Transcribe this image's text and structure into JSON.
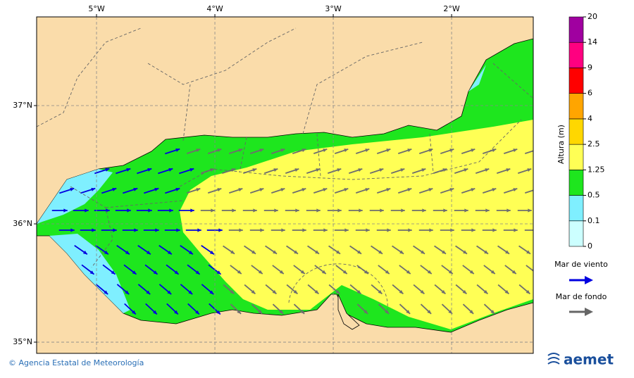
{
  "map": {
    "lon_range": [
      -5.506,
      -1.31
    ],
    "lat_range": [
      34.905,
      37.75
    ],
    "lon_ticks": [
      {
        "value": -5,
        "label": "5°W"
      },
      {
        "value": -4,
        "label": "4°W"
      },
      {
        "value": -3,
        "label": "3°W"
      },
      {
        "value": -2,
        "label": "2°W"
      }
    ],
    "lat_ticks": [
      {
        "value": 37,
        "label": "37°N"
      },
      {
        "value": 36,
        "label": "36°N"
      },
      {
        "value": 35,
        "label": "35°N"
      }
    ]
  },
  "colorbar": {
    "label": "Altura (m)",
    "levels": [
      0,
      0.1,
      0.5,
      1.25,
      2.5,
      4,
      6,
      9,
      14,
      20
    ],
    "colors": [
      "#ccffff",
      "#7fefff",
      "#1ee61e",
      "#ffff55",
      "#ffd700",
      "#ffa500",
      "#ff0000",
      "#ff0080",
      "#a000a0"
    ]
  },
  "legend": {
    "wind_sea": "Mar de viento",
    "swell": "Mar de fondo"
  },
  "footer": {
    "credit": "© Agencia Estatal de Meteorología",
    "logo": "aemet"
  }
}
